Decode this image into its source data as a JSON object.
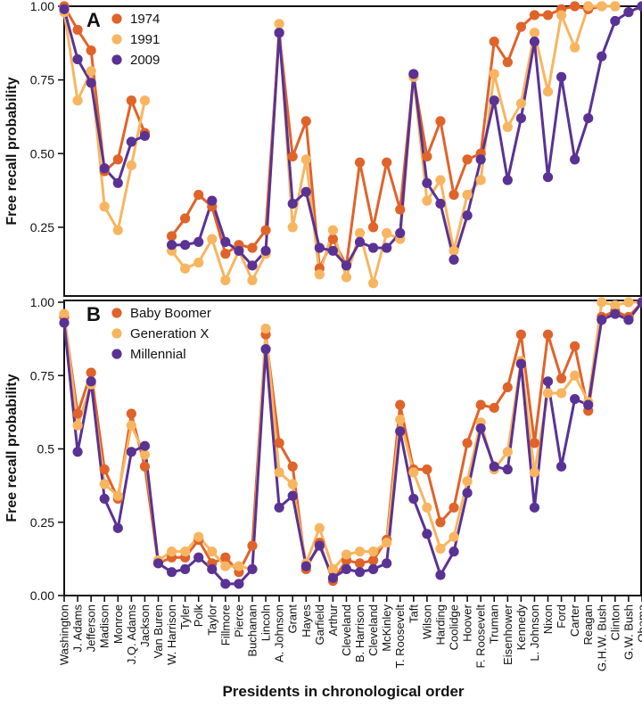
{
  "figure": {
    "xlabel": "Presidents in chronological order",
    "colors": {
      "c1": "#e0632a",
      "c2": "#f8b560",
      "c3": "#5a3294"
    }
  },
  "chart_data": [
    {
      "type": "line",
      "panel_label": "A",
      "ylabel": "Free recall probability",
      "ylim": [
        0,
        1
      ],
      "yticks": [
        "0.25",
        "0.50",
        "0.75",
        "1.00"
      ],
      "legend_position": "top-left",
      "categories": [
        "Washington",
        "J. Adams",
        "Jefferson",
        "Madison",
        "Monroe",
        "J.Q. Adams",
        "Jackson",
        "Van Buren",
        "W. Harrison",
        "Tyler",
        "Polk",
        "Taylor",
        "Fillmore",
        "Pierce",
        "Buchanan",
        "Lincoln",
        "A. Johnson",
        "Grant",
        "Hayes",
        "Garfield",
        "Arthur",
        "Cleveland",
        "B. Harrison",
        "Cleveland",
        "McKinley",
        "T. Roosevelt",
        "Taft",
        "Wilson",
        "Harding",
        "Coolidge",
        "Hoover",
        "F. Roosevelt",
        "Truman",
        "Eisenhower",
        "Kennedy",
        "L. Johnson",
        "Nixon",
        "Ford",
        "Carter",
        "Reagan",
        "G.H.W. Bush",
        "Clinton",
        "G.W. Bush",
        "Obama"
      ],
      "series": [
        {
          "name": "1974",
          "color": "#e0632a",
          "values": [
            1.0,
            0.92,
            0.85,
            0.44,
            0.48,
            0.68,
            0.57,
            null,
            0.22,
            0.28,
            0.36,
            0.32,
            0.16,
            0.19,
            0.18,
            0.24,
            0.91,
            0.49,
            0.61,
            0.11,
            0.21,
            0.12,
            0.47,
            0.25,
            0.47,
            0.31,
            0.76,
            0.49,
            0.61,
            0.36,
            0.48,
            0.5,
            0.88,
            0.81,
            0.93,
            0.97,
            0.97,
            0.99,
            1.0,
            0.99,
            1.0,
            1.0,
            null,
            null
          ]
        },
        {
          "name": "1991",
          "color": "#f8b560",
          "values": [
            0.98,
            0.68,
            0.78,
            0.32,
            0.24,
            0.46,
            0.68,
            null,
            0.17,
            0.11,
            0.13,
            0.21,
            0.07,
            0.17,
            0.07,
            0.16,
            0.94,
            0.25,
            0.48,
            0.09,
            0.24,
            0.08,
            0.23,
            0.06,
            0.23,
            0.21,
            0.76,
            0.34,
            0.41,
            0.17,
            0.36,
            0.41,
            0.77,
            0.59,
            0.67,
            0.91,
            0.71,
            0.97,
            0.86,
            1.0,
            1.0,
            1.0,
            null,
            null
          ]
        },
        {
          "name": "2009",
          "color": "#5a3294",
          "values": [
            0.99,
            0.82,
            0.74,
            0.45,
            0.4,
            0.54,
            0.56,
            null,
            0.19,
            0.19,
            0.2,
            0.34,
            0.2,
            0.17,
            0.12,
            0.17,
            0.91,
            0.33,
            0.37,
            0.18,
            0.17,
            0.12,
            0.2,
            0.18,
            0.18,
            0.23,
            0.77,
            0.4,
            0.33,
            0.14,
            0.29,
            0.48,
            0.68,
            0.41,
            0.62,
            0.88,
            0.42,
            0.76,
            0.48,
            0.62,
            0.83,
            0.95,
            0.98,
            1.0
          ]
        }
      ]
    },
    {
      "type": "line",
      "panel_label": "B",
      "ylabel": "Free recall probability",
      "ylim": [
        0,
        1
      ],
      "yticks": [
        "0.00",
        "0.25",
        "0.5",
        "0.75",
        "1.00"
      ],
      "legend_position": "top-left",
      "categories": [
        "Washington",
        "J. Adams",
        "Jefferson",
        "Madison",
        "Monroe",
        "J.Q. Adams",
        "Jackson",
        "Van Buren",
        "W. Harrison",
        "Tyler",
        "Polk",
        "Taylor",
        "Fillmore",
        "Pierce",
        "Buchanan",
        "Lincoln",
        "A. Johnson",
        "Grant",
        "Hayes",
        "Garfield",
        "Arthur",
        "Cleveland",
        "B. Harrison",
        "Cleveland",
        "McKinley",
        "T. Roosevelt",
        "Taft",
        "Wilson",
        "Harding",
        "Coolidge",
        "Hoover",
        "F. Roosevelt",
        "Truman",
        "Eisenhower",
        "Kennedy",
        "L. Johnson",
        "Nixon",
        "Ford",
        "Carter",
        "Reagan",
        "G.H.W. Bush",
        "Clinton",
        "G.W. Bush",
        "Obama"
      ],
      "series": [
        {
          "name": "Baby Boomer",
          "color": "#e0632a",
          "values": [
            0.95,
            0.62,
            0.76,
            0.43,
            0.33,
            0.62,
            0.44,
            0.11,
            0.13,
            0.13,
            0.19,
            0.11,
            0.13,
            0.08,
            0.17,
            0.89,
            0.52,
            0.44,
            0.09,
            0.18,
            0.05,
            0.12,
            0.11,
            0.12,
            0.19,
            0.65,
            0.43,
            0.43,
            0.25,
            0.3,
            0.52,
            0.65,
            0.64,
            0.71,
            0.89,
            0.52,
            0.89,
            0.74,
            0.85,
            0.63,
            0.95,
            0.97,
            0.95,
            1.0
          ]
        },
        {
          "name": "Generation X",
          "color": "#f8b560",
          "values": [
            0.96,
            0.58,
            0.72,
            0.38,
            0.34,
            0.58,
            0.48,
            0.12,
            0.15,
            0.15,
            0.2,
            0.15,
            0.1,
            0.1,
            0.09,
            0.91,
            0.42,
            0.38,
            0.11,
            0.23,
            0.09,
            0.14,
            0.15,
            0.15,
            0.18,
            0.6,
            0.42,
            0.3,
            0.16,
            0.2,
            0.39,
            0.59,
            0.43,
            0.49,
            0.8,
            0.42,
            0.69,
            0.69,
            0.75,
            0.66,
            1.0,
            0.99,
            1.0,
            1.0
          ]
        },
        {
          "name": "Millennial",
          "color": "#5a3294",
          "values": [
            0.93,
            0.49,
            0.73,
            0.33,
            0.23,
            0.49,
            0.51,
            0.11,
            0.08,
            0.09,
            0.13,
            0.09,
            0.04,
            0.04,
            0.09,
            0.84,
            0.3,
            0.34,
            0.1,
            0.17,
            0.06,
            0.09,
            0.08,
            0.09,
            0.11,
            0.56,
            0.33,
            0.21,
            0.07,
            0.15,
            0.35,
            0.57,
            0.44,
            0.43,
            0.79,
            0.3,
            0.73,
            0.44,
            0.67,
            0.65,
            0.94,
            0.96,
            0.94,
            1.0
          ]
        }
      ]
    }
  ]
}
